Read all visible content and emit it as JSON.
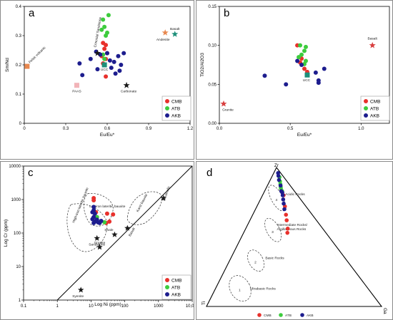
{
  "colors": {
    "CMB": "#e8312c",
    "ATB": "#3dcc3d",
    "AKB": "#1d1d8e",
    "ref_star": "#1a1a1a",
    "orange": "#e8884f",
    "teal": "#1e8f7a",
    "pink": "#f2b4b8",
    "basalt_red": "#d84040"
  },
  "legend": [
    "CMB",
    "ATB",
    "AKB"
  ],
  "chart_data": [
    {
      "type": "scatter",
      "panel_label": "a",
      "xlabel": "Eu/Eu*",
      "ylabel": "Sm/Nd",
      "xlim": [
        0,
        1.2
      ],
      "ylim": [
        0,
        0.4
      ],
      "xticks": [
        0,
        0.3,
        0.6,
        0.9,
        1.2
      ],
      "xtick_labels": [
        "0",
        "0.3",
        "0.6",
        "0.9",
        "1.2"
      ],
      "yticks": [
        0,
        0.1,
        0.2,
        0.3,
        0.4
      ],
      "ytick_labels": [
        "0",
        "0.1",
        "0.2",
        "0.3",
        "0.4"
      ],
      "series": [
        {
          "name": "CMB",
          "points": [
            [
              0.57,
              0.275
            ],
            [
              0.59,
              0.268
            ],
            [
              0.58,
              0.255
            ],
            [
              0.6,
              0.24
            ],
            [
              0.56,
              0.23
            ],
            [
              0.59,
              0.22
            ],
            [
              0.57,
              0.205
            ],
            [
              0.59,
              0.16
            ]
          ]
        },
        {
          "name": "ATB",
          "points": [
            [
              0.61,
              0.37
            ],
            [
              0.57,
              0.355
            ],
            [
              0.58,
              0.33
            ],
            [
              0.56,
              0.32
            ],
            [
              0.6,
              0.31
            ],
            [
              0.59,
              0.3
            ],
            [
              0.57,
              0.235
            ],
            [
              0.58,
              0.22
            ]
          ]
        },
        {
          "name": "AKB",
          "points": [
            [
              0.48,
              0.22
            ],
            [
              0.52,
              0.245
            ],
            [
              0.55,
              0.235
            ],
            [
              0.6,
              0.24
            ],
            [
              0.62,
              0.215
            ],
            [
              0.65,
              0.21
            ],
            [
              0.68,
              0.23
            ],
            [
              0.7,
              0.2
            ],
            [
              0.72,
              0.24
            ],
            [
              0.4,
              0.205
            ],
            [
              0.63,
              0.19
            ],
            [
              0.66,
              0.17
            ],
            [
              0.69,
              0.18
            ],
            [
              0.42,
              0.165
            ],
            [
              0.53,
              0.185
            ]
          ]
        }
      ],
      "references": [
        {
          "label": "Felsic volcanic",
          "x": 0.02,
          "y": 0.195,
          "marker": "square",
          "color": "orange"
        },
        {
          "label": "PAAS",
          "x": 0.38,
          "y": 0.13,
          "marker": "square",
          "color": "pink"
        },
        {
          "label": "UCC",
          "x": 0.58,
          "y": 0.2,
          "marker": "square",
          "color": "teal"
        },
        {
          "label": "Basalt",
          "x": 1.09,
          "y": 0.305,
          "marker": "star",
          "color": "teal"
        },
        {
          "label": "Andesite",
          "x": 1.02,
          "y": 0.31,
          "marker": "star",
          "color": "orange"
        },
        {
          "label": "Carbonate",
          "x": 0.74,
          "y": 0.13,
          "marker": "star",
          "color": "ref_star"
        },
        {
          "label": "Crinoidal Sandstone",
          "x": 0.53,
          "y": 0.24,
          "marker": "star",
          "color": "ref_star"
        }
      ]
    },
    {
      "type": "scatter",
      "panel_label": "b",
      "xlabel": "Eu/Eu*",
      "ylabel": "TiO2/Al2O3",
      "xlim": [
        0,
        1.2
      ],
      "ylim": [
        0,
        0.15
      ],
      "xticks": [
        0,
        0.5,
        1
      ],
      "xtick_labels": [
        "0.0",
        "0.5",
        "1.0"
      ],
      "yticks": [
        0,
        0.05,
        0.1,
        0.15
      ],
      "ytick_labels": [
        "0.00",
        "0.05",
        "0.10",
        "0.15"
      ],
      "series": [
        {
          "name": "CMB",
          "points": [
            [
              0.55,
              0.1
            ],
            [
              0.58,
              0.083
            ],
            [
              0.6,
              0.07
            ],
            [
              0.62,
              0.066
            ],
            [
              0.57,
              0.078
            ]
          ]
        },
        {
          "name": "ATB",
          "points": [
            [
              0.57,
              0.1
            ],
            [
              0.61,
              0.098
            ],
            [
              0.6,
              0.093
            ],
            [
              0.58,
              0.088
            ],
            [
              0.56,
              0.085
            ],
            [
              0.61,
              0.08
            ],
            [
              0.6,
              0.076
            ]
          ]
        },
        {
          "name": "AKB",
          "points": [
            [
              0.32,
              0.061
            ],
            [
              0.47,
              0.05
            ],
            [
              0.55,
              0.08
            ],
            [
              0.58,
              0.075
            ],
            [
              0.68,
              0.065
            ],
            [
              0.7,
              0.055
            ],
            [
              0.7,
              0.052
            ],
            [
              0.74,
              0.07
            ]
          ]
        }
      ],
      "references": [
        {
          "label": "Granite",
          "x": 0.03,
          "y": 0.025,
          "marker": "star",
          "color": "basalt_red"
        },
        {
          "label": "Basalt",
          "x": 1.08,
          "y": 0.1,
          "marker": "star",
          "color": "basalt_red"
        },
        {
          "label": "UCC",
          "x": 0.62,
          "y": 0.062,
          "marker": "square",
          "color": "teal"
        }
      ]
    },
    {
      "type": "scatter",
      "panel_label": "c",
      "xlabel": "Log Ni (ppm)",
      "ylabel": "Log Cr (ppm)",
      "scale": "log",
      "xlim": [
        0.1,
        10000
      ],
      "ylim": [
        1,
        10000
      ],
      "xticks": [
        0.1,
        1,
        10,
        100,
        1000,
        10000
      ],
      "xtick_labels": [
        "0.1",
        "1",
        "10",
        "100",
        "1000",
        "10,000"
      ],
      "yticks": [
        1,
        10,
        100,
        1000,
        10000
      ],
      "ytick_labels": [
        "1",
        "10",
        "100",
        "1000",
        "10000"
      ],
      "series": [
        {
          "name": "CMB",
          "points": [
            [
              12,
              1100
            ],
            [
              12,
              950
            ],
            [
              14,
              420
            ],
            [
              30,
              380
            ],
            [
              35,
              220
            ],
            [
              45,
              360
            ],
            [
              28,
              200
            ]
          ]
        },
        {
          "name": "ATB",
          "points": [
            [
              25,
              210
            ],
            [
              15,
              300
            ]
          ]
        },
        {
          "name": "AKB",
          "points": [
            [
              12,
              600
            ],
            [
              12,
              480
            ],
            [
              11,
              420
            ],
            [
              13,
              380
            ],
            [
              12,
              300
            ],
            [
              11,
              260
            ],
            [
              14,
              230
            ],
            [
              16,
              210
            ],
            [
              18,
              200
            ],
            [
              20,
              230
            ],
            [
              12,
              200
            ],
            [
              15,
              250
            ]
          ]
        }
      ],
      "references": [
        {
          "label": "Syenite",
          "x": 5,
          "y": 2,
          "marker": "star"
        },
        {
          "label": "Sandstone",
          "x": 15,
          "y": 70,
          "marker": "star"
        },
        {
          "label": "Granite",
          "x": 18,
          "y": 38,
          "marker": "star"
        },
        {
          "label": "Shale",
          "x": 50,
          "y": 90,
          "marker": "star"
        },
        {
          "label": "Basalt",
          "x": 120,
          "y": 140,
          "marker": "star"
        },
        {
          "label": "Ultramafic",
          "x": 1400,
          "y": 1100,
          "marker": "star"
        }
      ],
      "fields": [
        "Lowiron lateritic bauxite",
        "High-iron lateritic bauxite",
        "Karst bauxite"
      ],
      "line": "1:1"
    },
    {
      "type": "ternary",
      "panel_label": "d",
      "apices": [
        "Zr",
        "Ti",
        "Ga"
      ],
      "fields": [
        {
          "n": "1",
          "label": "Ultrabasic Rocks"
        },
        {
          "n": "2",
          "label": "Basic Rocks"
        },
        {
          "n": "3",
          "label": "Intermediate Rocks/ Argillaceous Rocks"
        },
        {
          "n": "4",
          "label": "Acidic Rocks"
        }
      ],
      "series": [
        {
          "name": "CMB",
          "points": [
            [
              0.53,
              0.25
            ],
            [
              0.56,
              0.24
            ],
            [
              0.62,
              0.21
            ],
            [
              0.66,
              0.19
            ],
            [
              0.72,
              0.16
            ],
            [
              0.8,
              0.12
            ]
          ]
        },
        {
          "name": "ATB",
          "points": [
            [
              0.83,
              0.1
            ],
            [
              0.86,
              0.08
            ],
            [
              0.9,
              0.06
            ],
            [
              0.93,
              0.045
            ],
            [
              0.85,
              0.085
            ],
            [
              0.88,
              0.07
            ]
          ]
        },
        {
          "name": "AKB",
          "points": [
            [
              0.7,
              0.165
            ],
            [
              0.74,
              0.145
            ],
            [
              0.77,
              0.13
            ],
            [
              0.8,
              0.115
            ],
            [
              0.83,
              0.095
            ],
            [
              0.87,
              0.075
            ],
            [
              0.91,
              0.05
            ],
            [
              0.94,
              0.035
            ],
            [
              0.96,
              0.025
            ],
            [
              0.82,
              0.105
            ]
          ]
        }
      ]
    }
  ]
}
